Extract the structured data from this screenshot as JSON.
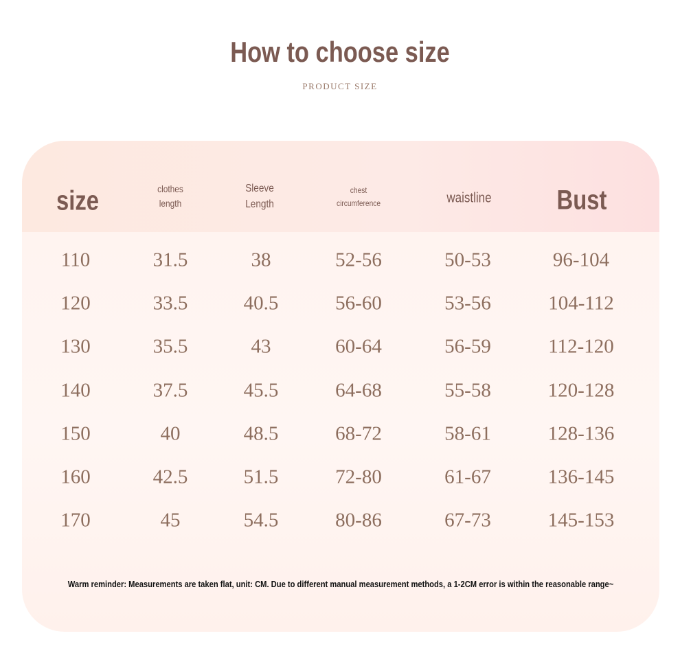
{
  "header": {
    "title": "How to choose size",
    "subtitle": "PRODUCT SIZE"
  },
  "table": {
    "columns": [
      {
        "line1": "size"
      },
      {
        "line1": "clothes",
        "line2": "length"
      },
      {
        "line1": "Sleeve",
        "line2": "Length"
      },
      {
        "line1": "chest",
        "line2": "circumference"
      },
      {
        "line1": "waistline"
      },
      {
        "line1": "Bust"
      }
    ],
    "rows": [
      [
        "110",
        "31.5",
        "38",
        "52-56",
        "50-53",
        "96-104"
      ],
      [
        "120",
        "33.5",
        "40.5",
        "56-60",
        "53-56",
        "104-112"
      ],
      [
        "130",
        "35.5",
        "43",
        "60-64",
        "56-59",
        "112-120"
      ],
      [
        "140",
        "37.5",
        "45.5",
        "64-68",
        "55-58",
        "120-128"
      ],
      [
        "150",
        "40",
        "48.5",
        "68-72",
        "58-61",
        "128-136"
      ],
      [
        "160",
        "42.5",
        "51.5",
        "72-80",
        "61-67",
        "136-145"
      ],
      [
        "170",
        "45",
        "54.5",
        "80-86",
        "67-73",
        "145-153"
      ]
    ]
  },
  "note": "Warm reminder: Measurements are taken flat, unit: CM. Due to different manual measurement methods, a 1-2CM error is within the reasonable range~",
  "colors": {
    "title": "#7b5a52",
    "values": "#8d6e5e",
    "header_band": "#fde9e0"
  }
}
